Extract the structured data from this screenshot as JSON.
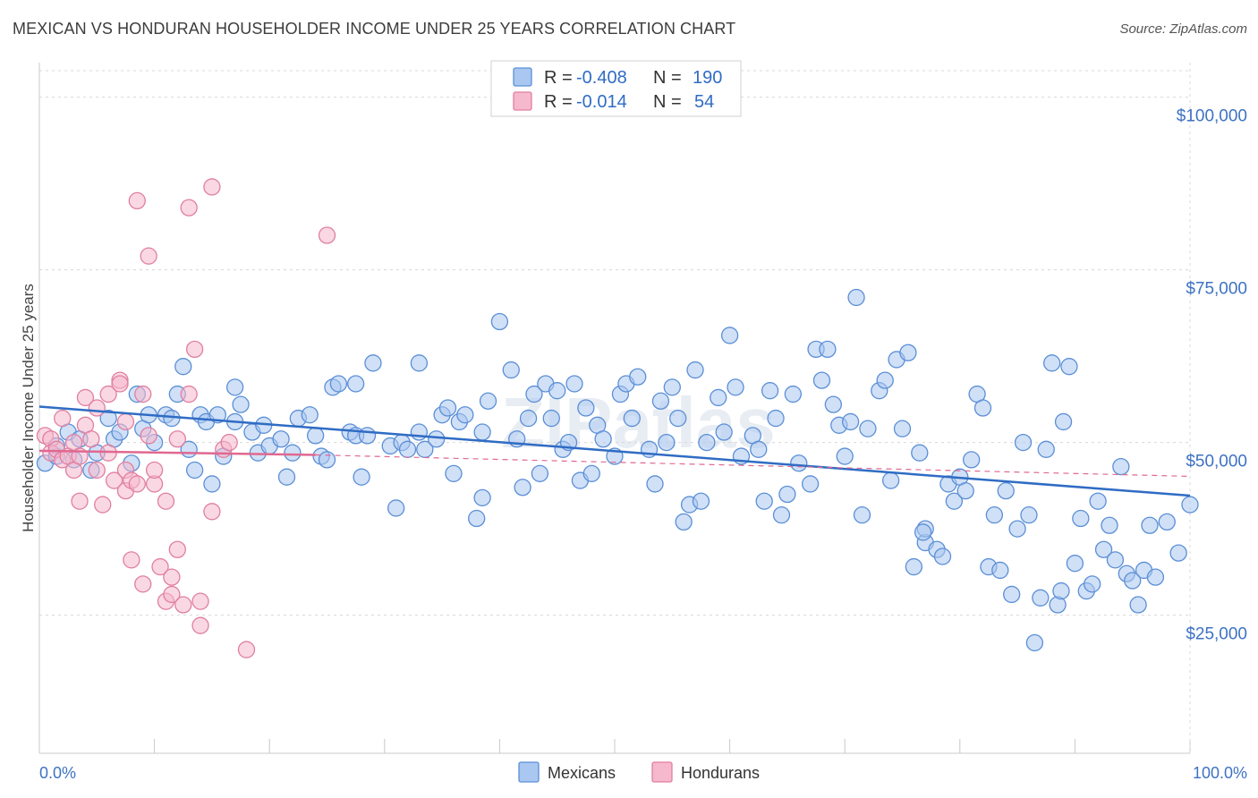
{
  "title": "MEXICAN VS HONDURAN HOUSEHOLDER INCOME UNDER 25 YEARS CORRELATION CHART",
  "source": "Source: ZipAtlas.com",
  "watermark": "ZIPatlas",
  "colors": {
    "mexicans_fill": "#a9c7f0",
    "mexicans_stroke": "#5b8fd6",
    "mexicans_line": "#2f6cc4",
    "hondurans_fill": "#f6b8cc",
    "hondurans_stroke": "#e07fa0",
    "hondurans_line": "#e06890",
    "axis_text": "#3d72c4"
  },
  "legend": {
    "rows": [
      {
        "r_label": "R =",
        "r_value": "-0.408",
        "n_label": "N =",
        "n_value": "190"
      },
      {
        "r_label": "R =",
        "r_value": "-0.014",
        "n_label": "N =",
        "n_value": "54"
      }
    ]
  },
  "chart_data": {
    "type": "scatter",
    "title": "MEXICAN VS HONDURAN HOUSEHOLDER INCOME UNDER 25 YEARS CORRELATION CHART",
    "xlabel": "",
    "ylabel": "Householder Income Under 25 years",
    "xlim": [
      0,
      100
    ],
    "ylim": [
      5000,
      105000
    ],
    "x_tick_labels": [
      "0.0%",
      "100.0%"
    ],
    "y_ticks": [
      25000,
      50000,
      75000,
      100000
    ],
    "y_tick_labels": [
      "$25,000",
      "$50,000",
      "$75,000",
      "$100,000"
    ],
    "grid": true,
    "legend_position": "top-center",
    "series": [
      {
        "name": "Mexicans",
        "r": -0.408,
        "n": 190,
        "trend": {
          "x": [
            0,
            100
          ],
          "y": [
            55200,
            42300
          ]
        },
        "points": [
          [
            0.5,
            47000
          ],
          [
            1.5,
            48000
          ],
          [
            1.5,
            49500
          ],
          [
            2.5,
            51500
          ],
          [
            3,
            47500
          ],
          [
            3.5,
            50500
          ],
          [
            4.5,
            46000
          ],
          [
            5,
            48500
          ],
          [
            6,
            53500
          ],
          [
            6.5,
            50500
          ],
          [
            7,
            51500
          ],
          [
            8,
            47000
          ],
          [
            8.5,
            57000
          ],
          [
            9,
            52000
          ],
          [
            9.5,
            54000
          ],
          [
            10,
            50000
          ],
          [
            11,
            54000
          ],
          [
            11.5,
            53500
          ],
          [
            12,
            57000
          ],
          [
            12.5,
            61000
          ],
          [
            13,
            49000
          ],
          [
            13.5,
            46000
          ],
          [
            14,
            54000
          ],
          [
            14.5,
            53000
          ],
          [
            15,
            44000
          ],
          [
            15.5,
            54000
          ],
          [
            16,
            48000
          ],
          [
            17,
            53000
          ],
          [
            17,
            58000
          ],
          [
            17.5,
            55500
          ],
          [
            18.5,
            51500
          ],
          [
            19,
            48500
          ],
          [
            19.5,
            52500
          ],
          [
            20,
            49500
          ],
          [
            21,
            50500
          ],
          [
            21.5,
            45000
          ],
          [
            22,
            48500
          ],
          [
            22.5,
            53500
          ],
          [
            23.5,
            54000
          ],
          [
            24,
            51000
          ],
          [
            24.5,
            48000
          ],
          [
            25,
            47500
          ],
          [
            25.5,
            58000
          ],
          [
            26,
            58500
          ],
          [
            27,
            51500
          ],
          [
            27.5,
            51000
          ],
          [
            27.5,
            58500
          ],
          [
            28,
            45000
          ],
          [
            28.5,
            51000
          ],
          [
            29,
            61500
          ],
          [
            30.5,
            49500
          ],
          [
            31,
            40500
          ],
          [
            31.5,
            50000
          ],
          [
            32,
            49000
          ],
          [
            33,
            51500
          ],
          [
            33,
            61500
          ],
          [
            33.5,
            49000
          ],
          [
            34.5,
            50500
          ],
          [
            35,
            54000
          ],
          [
            35.5,
            55000
          ],
          [
            36,
            45500
          ],
          [
            36.5,
            53000
          ],
          [
            37,
            54000
          ],
          [
            38,
            39000
          ],
          [
            38.5,
            51500
          ],
          [
            38.5,
            42000
          ],
          [
            39,
            56000
          ],
          [
            40,
            67500
          ],
          [
            41,
            60500
          ],
          [
            41.5,
            50500
          ],
          [
            42,
            43500
          ],
          [
            42.5,
            53500
          ],
          [
            43,
            57000
          ],
          [
            43.5,
            45500
          ],
          [
            44,
            58500
          ],
          [
            44.5,
            53500
          ],
          [
            45,
            57500
          ],
          [
            45.5,
            49000
          ],
          [
            46,
            50000
          ],
          [
            46.5,
            58500
          ],
          [
            47,
            44500
          ],
          [
            47.5,
            55000
          ],
          [
            48,
            45500
          ],
          [
            48.5,
            52500
          ],
          [
            49,
            50500
          ],
          [
            50,
            48000
          ],
          [
            50.5,
            57000
          ],
          [
            51,
            58500
          ],
          [
            51.5,
            53500
          ],
          [
            52,
            59500
          ],
          [
            53,
            49000
          ],
          [
            53.5,
            44000
          ],
          [
            54,
            56000
          ],
          [
            54.5,
            50000
          ],
          [
            55,
            58000
          ],
          [
            55.5,
            53500
          ],
          [
            56,
            38500
          ],
          [
            56.5,
            41000
          ],
          [
            57,
            60500
          ],
          [
            57.5,
            41500
          ],
          [
            58,
            50000
          ],
          [
            59,
            56500
          ],
          [
            59.5,
            51500
          ],
          [
            60,
            65500
          ],
          [
            60.5,
            58000
          ],
          [
            61,
            48000
          ],
          [
            62,
            51000
          ],
          [
            62.5,
            49000
          ],
          [
            63,
            41500
          ],
          [
            63.5,
            57500
          ],
          [
            64,
            53500
          ],
          [
            64.5,
            39500
          ],
          [
            65,
            42500
          ],
          [
            65.5,
            57000
          ],
          [
            66,
            47000
          ],
          [
            67,
            44000
          ],
          [
            67.5,
            63500
          ],
          [
            68,
            59000
          ],
          [
            68.5,
            63500
          ],
          [
            69,
            55500
          ],
          [
            69.5,
            52500
          ],
          [
            70,
            48000
          ],
          [
            70.5,
            53000
          ],
          [
            71,
            71000
          ],
          [
            71.5,
            39500
          ],
          [
            72,
            52000
          ],
          [
            73,
            57500
          ],
          [
            73.5,
            59000
          ],
          [
            74,
            44500
          ],
          [
            74.5,
            62000
          ],
          [
            75,
            52000
          ],
          [
            75.5,
            63000
          ],
          [
            76,
            32000
          ],
          [
            76.5,
            48500
          ],
          [
            77,
            35500
          ],
          [
            77,
            37500
          ],
          [
            78,
            34500
          ],
          [
            78.5,
            33500
          ],
          [
            79,
            44000
          ],
          [
            79.5,
            41500
          ],
          [
            80,
            45000
          ],
          [
            80.5,
            43000
          ],
          [
            81,
            47500
          ],
          [
            81.5,
            57000
          ],
          [
            82,
            55000
          ],
          [
            82.5,
            32000
          ],
          [
            83,
            39500
          ],
          [
            83.5,
            31500
          ],
          [
            84,
            43000
          ],
          [
            84.5,
            28000
          ],
          [
            85,
            37500
          ],
          [
            85.5,
            50000
          ],
          [
            86,
            39500
          ],
          [
            86.5,
            21000
          ],
          [
            87,
            27500
          ],
          [
            87.5,
            49000
          ],
          [
            88,
            61500
          ],
          [
            88.5,
            26500
          ],
          [
            89,
            53000
          ],
          [
            89.5,
            61000
          ],
          [
            90,
            32500
          ],
          [
            90.5,
            39000
          ],
          [
            91,
            28500
          ],
          [
            91.5,
            29500
          ],
          [
            92,
            41500
          ],
          [
            92.5,
            34500
          ],
          [
            93,
            38000
          ],
          [
            93.5,
            33000
          ],
          [
            94,
            46500
          ],
          [
            94.5,
            31000
          ],
          [
            95,
            30000
          ],
          [
            95.5,
            26500
          ],
          [
            96,
            31500
          ],
          [
            96.5,
            38000
          ],
          [
            97,
            30500
          ],
          [
            98,
            38500
          ],
          [
            99,
            34000
          ],
          [
            100,
            41000
          ],
          [
            88.8,
            28500
          ],
          [
            76.8,
            37000
          ]
        ]
      },
      {
        "name": "Hondurans",
        "r": -0.014,
        "n": 54,
        "trend": {
          "x": [
            0,
            24
          ],
          "y": [
            48800,
            48200
          ]
        },
        "trend_extended": {
          "x": [
            24,
            100
          ],
          "y": [
            48200,
            45100
          ]
        },
        "points": [
          [
            0.5,
            51000
          ],
          [
            1,
            50500
          ],
          [
            1,
            48500
          ],
          [
            1.5,
            49000
          ],
          [
            2,
            47500
          ],
          [
            2,
            53500
          ],
          [
            2.5,
            48000
          ],
          [
            3,
            50000
          ],
          [
            3,
            46000
          ],
          [
            3.5,
            41500
          ],
          [
            3.5,
            48000
          ],
          [
            4,
            52500
          ],
          [
            4,
            56500
          ],
          [
            4.5,
            50500
          ],
          [
            5,
            55000
          ],
          [
            5,
            46000
          ],
          [
            5.5,
            41000
          ],
          [
            6,
            48500
          ],
          [
            6,
            57000
          ],
          [
            6.5,
            44500
          ],
          [
            7,
            59000
          ],
          [
            7,
            58500
          ],
          [
            7.5,
            53000
          ],
          [
            7.5,
            46000
          ],
          [
            7.5,
            43000
          ],
          [
            8,
            44500
          ],
          [
            8,
            33000
          ],
          [
            8.5,
            85000
          ],
          [
            8.5,
            44000
          ],
          [
            9,
            57000
          ],
          [
            9,
            29500
          ],
          [
            9.5,
            77000
          ],
          [
            9.5,
            51000
          ],
          [
            10,
            44000
          ],
          [
            10,
            46000
          ],
          [
            10.5,
            32000
          ],
          [
            11,
            27000
          ],
          [
            11,
            41500
          ],
          [
            11.5,
            28000
          ],
          [
            11.5,
            30500
          ],
          [
            12,
            34500
          ],
          [
            12,
            50500
          ],
          [
            12.5,
            26500
          ],
          [
            13,
            84000
          ],
          [
            13,
            57000
          ],
          [
            13.5,
            63500
          ],
          [
            14,
            27000
          ],
          [
            14,
            23500
          ],
          [
            15,
            40000
          ],
          [
            15,
            87000
          ],
          [
            16,
            49000
          ],
          [
            16.5,
            50000
          ],
          [
            18,
            20000
          ],
          [
            25,
            80000
          ]
        ]
      }
    ]
  },
  "bottom_legend": [
    "Mexicans",
    "Hondurans"
  ]
}
